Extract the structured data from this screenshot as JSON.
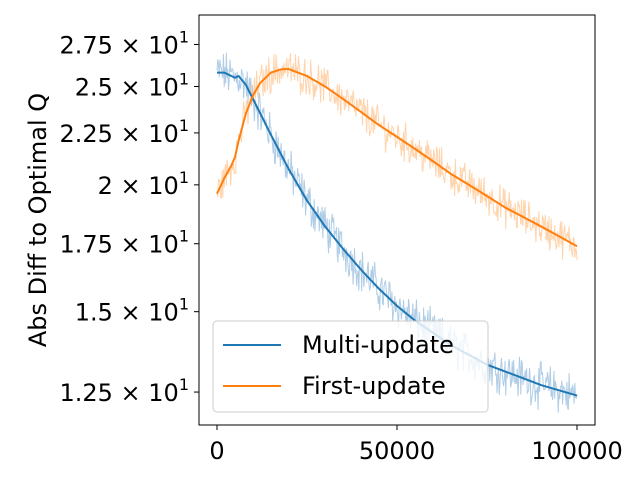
{
  "chart_data": {
    "type": "line",
    "title": "",
    "xlabel": "",
    "ylabel": "Abs Diff to Optimal Q",
    "yscale": "log",
    "xlim": [
      -5000,
      105000
    ],
    "ylim": [
      11.6,
      29.4
    ],
    "x_ticks": [
      {
        "value": 0,
        "label": "0"
      },
      {
        "value": 50000,
        "label": "50000"
      },
      {
        "value": 100000,
        "label": "100000"
      }
    ],
    "y_ticks": [
      {
        "value": 12.5,
        "mantissa": "1.25",
        "exponent": "1"
      },
      {
        "value": 15,
        "mantissa": "1.5",
        "exponent": "1"
      },
      {
        "value": 17.5,
        "mantissa": "1.75",
        "exponent": "1"
      },
      {
        "value": 20,
        "mantissa": "2",
        "exponent": "1"
      },
      {
        "value": 22.5,
        "mantissa": "2.25",
        "exponent": "1"
      },
      {
        "value": 25,
        "mantissa": "2.5",
        "exponent": "1"
      },
      {
        "value": 27.5,
        "mantissa": "2.75",
        "exponent": "1"
      }
    ],
    "y_times": "×",
    "y_base": "10",
    "grid": false,
    "legend_position": "lower-left",
    "series": [
      {
        "name": "Multi-update",
        "color": "#1f77b4",
        "band_color": "#a6c8e3",
        "noise_amplitude": 0.04,
        "x": [
          0,
          2000,
          4000,
          5000,
          6000,
          8000,
          10000,
          15000,
          20000,
          25000,
          30000,
          35000,
          40000,
          45000,
          50000,
          55000,
          60000,
          65000,
          70000,
          75000,
          80000,
          85000,
          90000,
          95000,
          100000
        ],
        "values": [
          25.8,
          25.8,
          25.6,
          25.5,
          25.6,
          25.1,
          24.3,
          22.4,
          20.7,
          19.3,
          18.2,
          17.3,
          16.5,
          15.8,
          15.2,
          14.7,
          14.3,
          13.9,
          13.6,
          13.3,
          13.1,
          12.9,
          12.7,
          12.55,
          12.4
        ]
      },
      {
        "name": "First-update",
        "color": "#ff7f0e",
        "band_color": "#ffcfa3",
        "noise_amplitude": 0.035,
        "x": [
          0,
          2000,
          4000,
          5000,
          6000,
          8000,
          10000,
          12000,
          15000,
          18000,
          20000,
          25000,
          30000,
          35000,
          40000,
          45000,
          50000,
          55000,
          60000,
          65000,
          70000,
          75000,
          80000,
          85000,
          90000,
          95000,
          100000
        ],
        "values": [
          19.6,
          20.3,
          20.9,
          21.3,
          22.1,
          23.5,
          24.5,
          25.2,
          25.8,
          26.0,
          26.0,
          25.6,
          25.0,
          24.3,
          23.6,
          22.9,
          22.3,
          21.7,
          21.1,
          20.5,
          20.0,
          19.5,
          19.0,
          18.6,
          18.2,
          17.8,
          17.4
        ]
      }
    ]
  }
}
